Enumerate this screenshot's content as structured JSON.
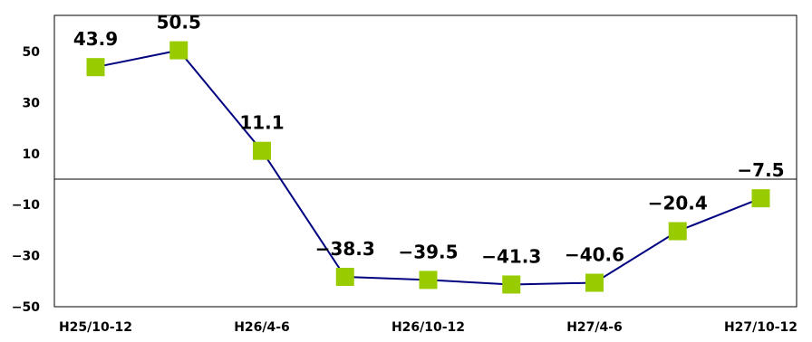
{
  "chart_data": {
    "type": "line",
    "categories": [
      "H25/10-12",
      "",
      "H26/4-6",
      "",
      "H26/10-12",
      "",
      "H27/4-6",
      "",
      "H27/10-12"
    ],
    "series": [
      {
        "values": [
          43.9,
          50.5,
          11.1,
          -38.3,
          -39.5,
          -41.3,
          -40.6,
          -20.4,
          -7.5
        ],
        "labels": [
          "43.9",
          "50.5",
          "11.1",
          "−38.3",
          "−39.5",
          "−41.3",
          "−40.6",
          "−20.4",
          "−7.5"
        ]
      }
    ],
    "yticks": [
      50,
      30,
      10,
      -10,
      -30,
      -50
    ],
    "ytick_labels": [
      "50",
      "30",
      "10",
      "−10",
      "−30",
      "−50"
    ],
    "xtick_labels": [
      "H25/10-12",
      "H26/4-6",
      "H26/10-12",
      "H27/4-6",
      "H27/10-12"
    ],
    "ylim": [
      -50,
      60
    ],
    "zero_line": true,
    "grid": false,
    "colors": {
      "line": "#000080",
      "marker": "#99cc00",
      "axis": "#000000"
    }
  }
}
